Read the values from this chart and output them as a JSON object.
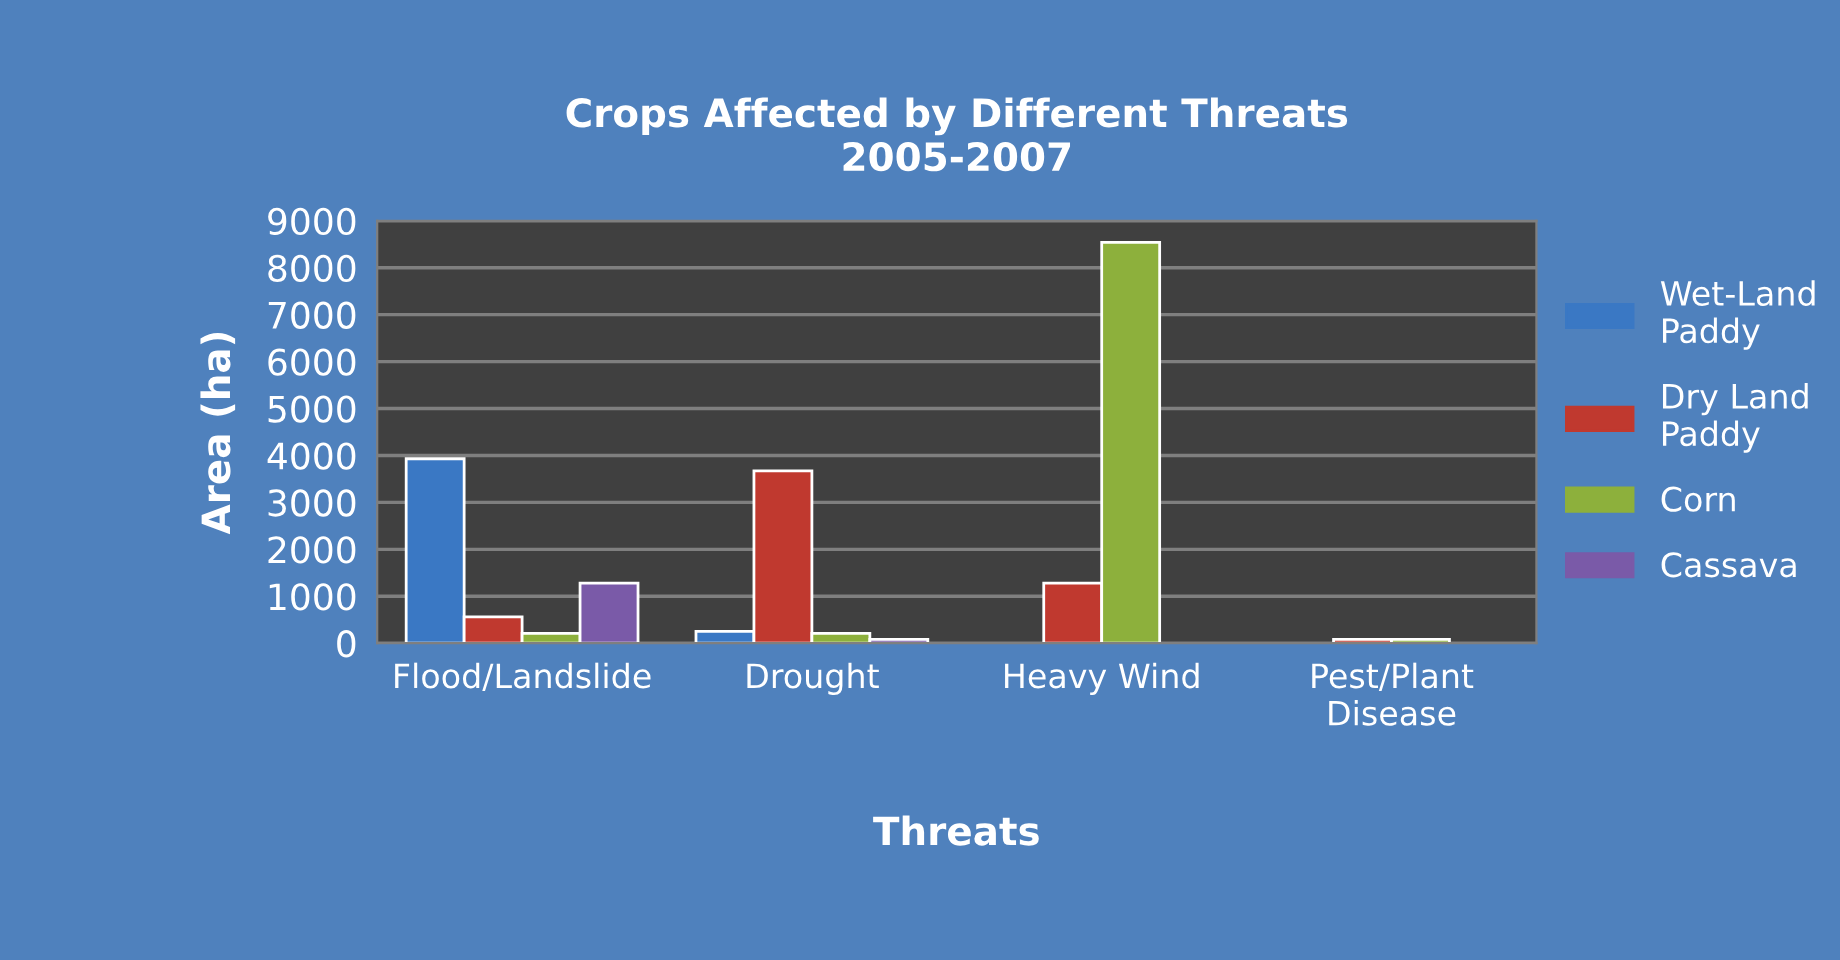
{
  "chart_data": {
    "type": "bar",
    "title": "Crops Affected by Different Threats\n2005-2007",
    "xlabel": "Threats",
    "ylabel": "Area (ha)",
    "categories": [
      "Flood/Landslide",
      "Drought",
      "Heavy Wind",
      "Pest/Plant\nDisease"
    ],
    "series": [
      {
        "name": "Wet-Land\nPaddy",
        "color": "#3a78c4",
        "values": [
          3930,
          250,
          null,
          null
        ]
      },
      {
        "name": "Dry Land\nPaddy",
        "color": "#c0392f",
        "values": [
          560,
          3670,
          1280,
          80
        ]
      },
      {
        "name": "Corn",
        "color": "#8db03c",
        "values": [
          210,
          210,
          8540,
          80
        ]
      },
      {
        "name": "Cassava",
        "color": "#7a5aa8",
        "values": [
          1280,
          80,
          null,
          null
        ]
      }
    ],
    "ylim": [
      0,
      9000
    ],
    "yticks": [
      0,
      1000,
      2000,
      3000,
      4000,
      5000,
      6000,
      7000,
      8000,
      9000
    ],
    "grid": "y",
    "legend": "right"
  }
}
